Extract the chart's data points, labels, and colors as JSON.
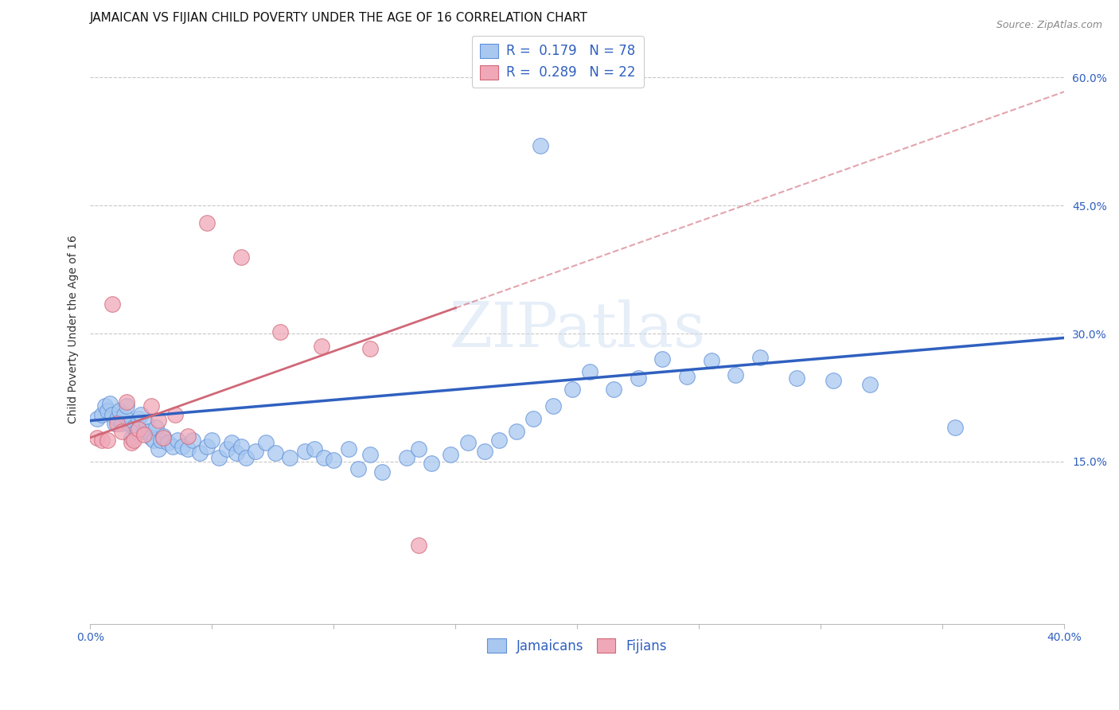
{
  "title": "JAMAICAN VS FIJIAN CHILD POVERTY UNDER THE AGE OF 16 CORRELATION CHART",
  "source": "Source: ZipAtlas.com",
  "ylabel": "Child Poverty Under the Age of 16",
  "xlim": [
    0.0,
    0.4
  ],
  "ylim": [
    -0.04,
    0.65
  ],
  "xticks": [
    0.0,
    0.05,
    0.1,
    0.15,
    0.2,
    0.25,
    0.3,
    0.35,
    0.4
  ],
  "xtick_labels": [
    "0.0%",
    "",
    "",
    "",
    "",
    "",
    "",
    "",
    "40.0%"
  ],
  "yticks": [
    0.15,
    0.3,
    0.45,
    0.6
  ],
  "ytick_labels": [
    "15.0%",
    "30.0%",
    "45.0%",
    "60.0%"
  ],
  "grid_color": "#c8c8c8",
  "background_color": "#ffffff",
  "jamaican_color": "#a8c8f0",
  "jamaican_edge": "#6090d8",
  "fijian_color": "#f0a8b8",
  "fijian_edge": "#d06878",
  "trend_jamaican_color": "#3060c0",
  "trend_fijian_color": "#d06878",
  "R_jamaican": 0.179,
  "N_jamaican": 78,
  "R_fijian": 0.289,
  "N_fijian": 22,
  "watermark": "ZIPatlas",
  "title_fontsize": 11,
  "axis_label_fontsize": 10,
  "tick_fontsize": 10,
  "legend_fontsize": 12,
  "jamaican_x": [
    0.003,
    0.005,
    0.006,
    0.007,
    0.008,
    0.009,
    0.01,
    0.011,
    0.012,
    0.013,
    0.014,
    0.015,
    0.016,
    0.017,
    0.018,
    0.019,
    0.02,
    0.021,
    0.022,
    0.023,
    0.024,
    0.025,
    0.026,
    0.027,
    0.028,
    0.029,
    0.03,
    0.032,
    0.034,
    0.036,
    0.038,
    0.04,
    0.042,
    0.045,
    0.048,
    0.05,
    0.053,
    0.056,
    0.058,
    0.06,
    0.062,
    0.064,
    0.068,
    0.072,
    0.076,
    0.082,
    0.088,
    0.092,
    0.096,
    0.1,
    0.106,
    0.11,
    0.115,
    0.12,
    0.13,
    0.135,
    0.14,
    0.148,
    0.155,
    0.162,
    0.168,
    0.175,
    0.182,
    0.19,
    0.198,
    0.205,
    0.215,
    0.225,
    0.235,
    0.245,
    0.255,
    0.265,
    0.275,
    0.29,
    0.305,
    0.32,
    0.355,
    0.185
  ],
  "jamaican_y": [
    0.2,
    0.205,
    0.215,
    0.21,
    0.218,
    0.205,
    0.195,
    0.2,
    0.21,
    0.195,
    0.205,
    0.215,
    0.195,
    0.178,
    0.19,
    0.185,
    0.2,
    0.205,
    0.185,
    0.195,
    0.185,
    0.178,
    0.175,
    0.19,
    0.165,
    0.175,
    0.18,
    0.172,
    0.168,
    0.175,
    0.168,
    0.165,
    0.175,
    0.16,
    0.168,
    0.175,
    0.155,
    0.165,
    0.172,
    0.16,
    0.168,
    0.155,
    0.162,
    0.172,
    0.16,
    0.155,
    0.162,
    0.165,
    0.155,
    0.152,
    0.165,
    0.142,
    0.158,
    0.138,
    0.155,
    0.165,
    0.148,
    0.158,
    0.172,
    0.162,
    0.175,
    0.185,
    0.2,
    0.215,
    0.235,
    0.255,
    0.235,
    0.248,
    0.27,
    0.25,
    0.268,
    0.252,
    0.272,
    0.248,
    0.245,
    0.24,
    0.19,
    0.52
  ],
  "fijian_x": [
    0.003,
    0.005,
    0.007,
    0.009,
    0.011,
    0.013,
    0.015,
    0.017,
    0.018,
    0.02,
    0.022,
    0.025,
    0.028,
    0.03,
    0.035,
    0.04,
    0.048,
    0.062,
    0.078,
    0.095,
    0.115,
    0.135
  ],
  "fijian_y": [
    0.178,
    0.175,
    0.175,
    0.335,
    0.195,
    0.185,
    0.22,
    0.172,
    0.175,
    0.188,
    0.182,
    0.215,
    0.198,
    0.178,
    0.205,
    0.18,
    0.43,
    0.39,
    0.302,
    0.285,
    0.282,
    0.052
  ]
}
